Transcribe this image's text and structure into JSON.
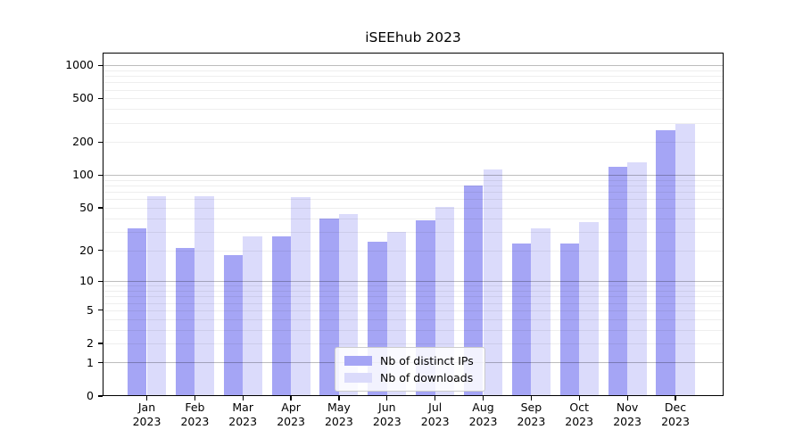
{
  "chart_data": {
    "type": "bar",
    "title": "iSEEhub 2023",
    "categories": [
      "Jan 2023",
      "Feb 2023",
      "Mar 2023",
      "Apr 2023",
      "May 2023",
      "Jun 2023",
      "Jul 2023",
      "Aug 2023",
      "Sep 2023",
      "Oct 2023",
      "Nov 2023",
      "Dec 2023"
    ],
    "series": [
      {
        "name": "Nb of distinct IPs",
        "color": "#a5a5f5",
        "values": [
          32,
          21,
          18,
          27,
          40,
          24,
          38,
          80,
          23,
          23,
          120,
          258
        ]
      },
      {
        "name": "Nb of downloads",
        "color": "#dbdbfb",
        "values": [
          64,
          64,
          27,
          63,
          44,
          30,
          51,
          112,
          32,
          37,
          130,
          294
        ]
      }
    ],
    "xlabel": "",
    "ylabel": "",
    "yscale": "log1p",
    "ylim": [
      0,
      1300
    ],
    "y_ticks": [
      0,
      1,
      2,
      5,
      10,
      20,
      50,
      100,
      200,
      500,
      1000
    ],
    "grid": "horizontal",
    "legend_position": "inside-bottom-center",
    "colors": {
      "background": "#ffffff",
      "axis": "#000000",
      "major_grid": "#c3c3c3",
      "minor_grid": "#f0f0f0",
      "legend_border": "#cccccc"
    }
  }
}
